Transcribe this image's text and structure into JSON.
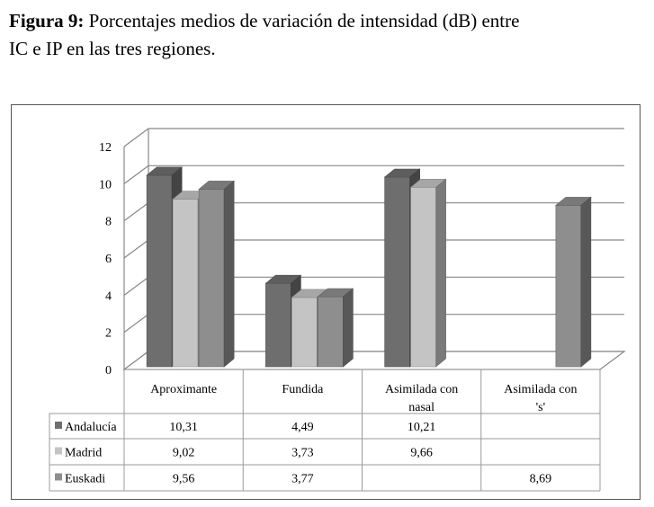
{
  "caption": {
    "bold": "Figura 9:",
    "line1": " Porcentajes medios de variación de intensidad (dB) entre",
    "line2": "IC e IP en las tres regiones."
  },
  "chart_data": {
    "type": "bar",
    "title": "",
    "xlabel": "",
    "ylabel": "",
    "ylim": [
      0,
      12
    ],
    "yticks": [
      "0",
      "2",
      "4",
      "6",
      "8",
      "10",
      "12"
    ],
    "grid": true,
    "categories": [
      [
        "Aproximante"
      ],
      [
        "Fundida"
      ],
      [
        "Asimilada con",
        "nasal"
      ],
      [
        "Asimilada con",
        "'s'"
      ]
    ],
    "series": [
      {
        "name": "Andalucía",
        "color": "#6e6e6e",
        "values": [
          10.31,
          4.49,
          10.21,
          null
        ],
        "labels": [
          "10,31",
          "4,49",
          "10,21",
          ""
        ]
      },
      {
        "name": "Madrid",
        "color": "#c4c4c4",
        "values": [
          9.02,
          3.73,
          9.66,
          null
        ],
        "labels": [
          "9,02",
          "3,73",
          "9,66",
          ""
        ]
      },
      {
        "name": "Euskadi",
        "color": "#8e8e8e",
        "values": [
          9.56,
          3.77,
          null,
          8.69
        ],
        "labels": [
          "9,56",
          "3,77",
          "",
          "8,69"
        ]
      }
    ],
    "legend": "table-left"
  }
}
